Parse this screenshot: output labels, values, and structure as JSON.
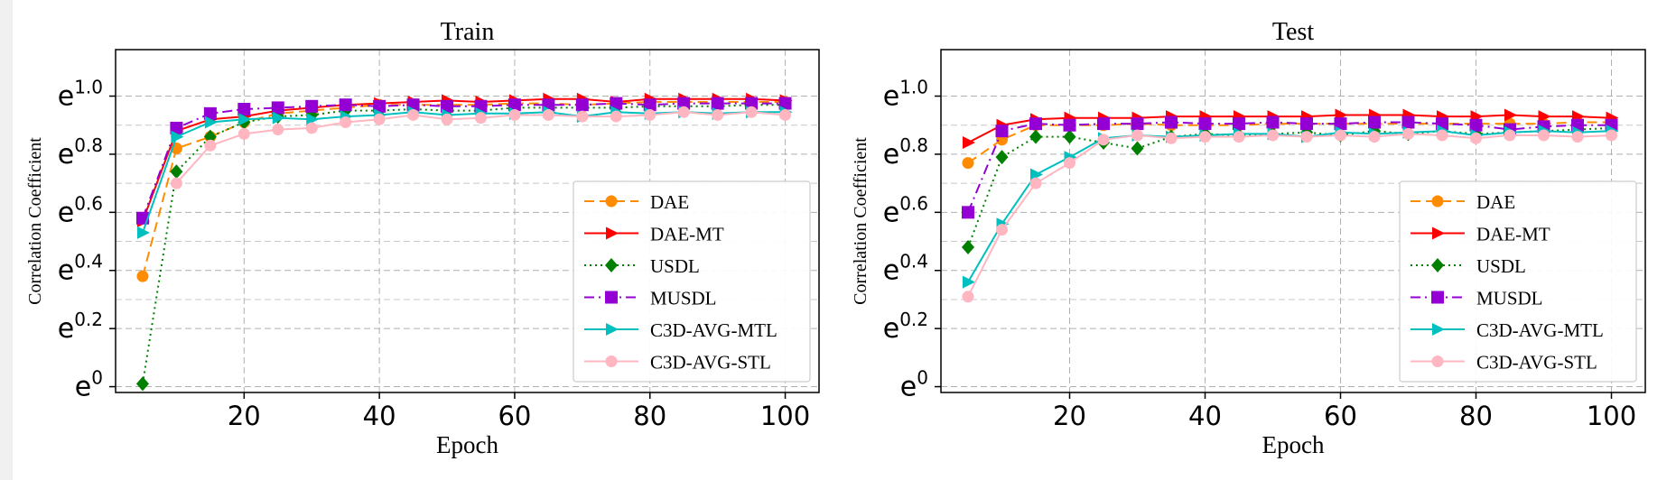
{
  "chart_data": [
    {
      "type": "line",
      "title": "Train",
      "xlabel": "Epoch",
      "ylabel": "Correlation Coefficient",
      "x": [
        5,
        10,
        15,
        20,
        25,
        30,
        35,
        40,
        45,
        50,
        55,
        60,
        65,
        70,
        75,
        80,
        85,
        90,
        95,
        100
      ],
      "xlim": [
        1,
        105
      ],
      "xticks": [
        20,
        40,
        60,
        80,
        100
      ],
      "xtick_labels": [
        "20",
        "40",
        "60",
        "80",
        "100"
      ],
      "ylim": [
        -0.02,
        1.16
      ],
      "yticks": [
        0,
        0.2,
        0.4,
        0.6,
        0.8,
        1.0
      ],
      "ytick_bases": [
        "e",
        "e",
        "e",
        "e",
        "e",
        "e"
      ],
      "ytick_exps": [
        "0",
        "0.2",
        "0.4",
        "0.6",
        "0.8",
        "1.0"
      ],
      "grid": true,
      "legend_position": "lower-right",
      "series": [
        {
          "name": "DAE",
          "color": "#ff8c00",
          "dash": "dashed",
          "marker": "circle",
          "values": [
            0.38,
            0.82,
            0.86,
            0.91,
            0.94,
            0.95,
            0.96,
            0.97,
            0.97,
            0.97,
            0.97,
            0.975,
            0.975,
            0.97,
            0.975,
            0.98,
            0.98,
            0.98,
            0.98,
            0.98
          ]
        },
        {
          "name": "DAE-MT",
          "color": "#ff0000",
          "dash": "solid",
          "marker": "triangle-right",
          "values": [
            0.57,
            0.88,
            0.92,
            0.93,
            0.95,
            0.96,
            0.97,
            0.975,
            0.98,
            0.985,
            0.98,
            0.985,
            0.99,
            0.99,
            0.98,
            0.99,
            0.99,
            0.99,
            0.99,
            0.985
          ]
        },
        {
          "name": "USDL",
          "color": "#008000",
          "dash": "dotted",
          "marker": "diamond",
          "values": [
            0.01,
            0.74,
            0.86,
            0.91,
            0.93,
            0.935,
            0.95,
            0.95,
            0.955,
            0.95,
            0.95,
            0.96,
            0.96,
            0.96,
            0.96,
            0.965,
            0.965,
            0.965,
            0.97,
            0.97
          ]
        },
        {
          "name": "MUSDL",
          "color": "#9400d3",
          "dash": "dashdot",
          "marker": "square",
          "values": [
            0.58,
            0.89,
            0.94,
            0.955,
            0.96,
            0.965,
            0.97,
            0.965,
            0.97,
            0.965,
            0.965,
            0.97,
            0.97,
            0.97,
            0.975,
            0.97,
            0.975,
            0.975,
            0.975,
            0.975
          ]
        },
        {
          "name": "C3D-AVG-MTL",
          "color": "#00bfbf",
          "dash": "solid",
          "marker": "triangle-right",
          "values": [
            0.53,
            0.86,
            0.91,
            0.92,
            0.925,
            0.92,
            0.93,
            0.935,
            0.945,
            0.935,
            0.94,
            0.94,
            0.945,
            0.93,
            0.945,
            0.94,
            0.945,
            0.94,
            0.945,
            0.945
          ]
        },
        {
          "name": "C3D-AVG-STL",
          "color": "#ffb6c1",
          "dash": "solid",
          "marker": "circle",
          "values": [
            null,
            0.7,
            0.83,
            0.87,
            0.885,
            0.89,
            0.91,
            0.92,
            0.935,
            0.92,
            0.925,
            0.935,
            0.935,
            0.93,
            0.93,
            0.935,
            0.945,
            0.935,
            0.945,
            0.935
          ]
        }
      ]
    },
    {
      "type": "line",
      "title": "Test",
      "xlabel": "Epoch",
      "ylabel": "Correlation Coefficient",
      "x": [
        5,
        10,
        15,
        20,
        25,
        30,
        35,
        40,
        45,
        50,
        55,
        60,
        65,
        70,
        75,
        80,
        85,
        90,
        95,
        100
      ],
      "xlim": [
        1,
        105
      ],
      "xticks": [
        20,
        40,
        60,
        80,
        100
      ],
      "xtick_labels": [
        "20",
        "40",
        "60",
        "80",
        "100"
      ],
      "ylim": [
        -0.02,
        1.16
      ],
      "yticks": [
        0,
        0.2,
        0.4,
        0.6,
        0.8,
        1.0
      ],
      "ytick_bases": [
        "e",
        "e",
        "e",
        "e",
        "e",
        "e"
      ],
      "ytick_exps": [
        "0",
        "0.2",
        "0.4",
        "0.6",
        "0.8",
        "1.0"
      ],
      "grid": true,
      "legend_position": "lower-right",
      "series": [
        {
          "name": "DAE",
          "color": "#ff8c00",
          "dash": "dashed",
          "marker": "circle",
          "values": [
            0.77,
            0.85,
            0.9,
            0.9,
            0.9,
            0.905,
            0.9,
            0.9,
            0.9,
            0.905,
            0.905,
            0.905,
            0.905,
            0.905,
            0.905,
            0.905,
            0.905,
            0.905,
            0.91,
            0.91
          ]
        },
        {
          "name": "DAE-MT",
          "color": "#ff0000",
          "dash": "solid",
          "marker": "triangle-right",
          "values": [
            0.84,
            0.9,
            0.92,
            0.925,
            0.925,
            0.925,
            0.93,
            0.93,
            0.93,
            0.93,
            0.93,
            0.935,
            0.935,
            0.935,
            0.93,
            0.93,
            0.935,
            0.93,
            0.93,
            0.925
          ]
        },
        {
          "name": "USDL",
          "color": "#008000",
          "dash": "dotted",
          "marker": "diamond",
          "values": [
            0.48,
            0.79,
            0.86,
            0.86,
            0.84,
            0.82,
            0.86,
            0.87,
            0.865,
            0.87,
            0.875,
            0.865,
            0.88,
            0.87,
            0.88,
            0.87,
            0.875,
            0.88,
            0.885,
            0.89
          ]
        },
        {
          "name": "MUSDL",
          "color": "#9400d3",
          "dash": "dashdot",
          "marker": "square",
          "values": [
            0.6,
            0.88,
            0.905,
            0.9,
            0.905,
            0.905,
            0.91,
            0.905,
            0.905,
            0.91,
            0.905,
            0.905,
            0.91,
            0.91,
            0.905,
            0.9,
            0.885,
            0.895,
            0.9,
            0.9
          ]
        },
        {
          "name": "C3D-AVG-MTL",
          "color": "#00bfbf",
          "dash": "solid",
          "marker": "triangle-right",
          "values": [
            0.36,
            0.56,
            0.73,
            0.79,
            0.855,
            0.865,
            0.86,
            0.865,
            0.87,
            0.87,
            0.86,
            0.875,
            0.87,
            0.875,
            0.88,
            0.865,
            0.875,
            0.88,
            0.875,
            0.88
          ]
        },
        {
          "name": "C3D-AVG-STL",
          "color": "#ffb6c1",
          "dash": "solid",
          "marker": "circle",
          "values": [
            0.31,
            0.54,
            0.7,
            0.77,
            0.85,
            0.865,
            0.855,
            0.86,
            0.86,
            0.865,
            0.86,
            0.865,
            0.86,
            0.87,
            0.865,
            0.855,
            0.865,
            0.865,
            0.86,
            0.865
          ]
        }
      ]
    }
  ]
}
